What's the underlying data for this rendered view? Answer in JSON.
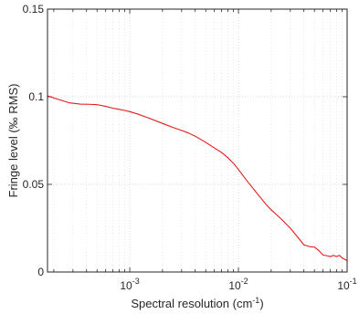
{
  "chart_data": {
    "type": "line",
    "title": "",
    "xlabel": "Spectral resolution (cm",
    "xlabel_sup": "-1",
    "xlabel_end": ")",
    "ylabel": "Fringe level (‰ RMS)",
    "xscale": "log",
    "xlim": [
      0.000175,
      0.1
    ],
    "ylim": [
      0,
      0.15
    ],
    "grid": true,
    "x_ticks": [
      {
        "value": 0.001,
        "base": "10",
        "exp": "-3"
      },
      {
        "value": 0.01,
        "base": "10",
        "exp": "-2"
      },
      {
        "value": 0.1,
        "base": "10",
        "exp": "-1"
      }
    ],
    "y_ticks": [
      {
        "value": 0,
        "label": "0"
      },
      {
        "value": 0.05,
        "label": "0.05"
      },
      {
        "value": 0.1,
        "label": "0.1"
      },
      {
        "value": 0.15,
        "label": "0.15"
      }
    ],
    "series": [
      {
        "color": "#e41a1c",
        "x": [
          0.000175,
          0.00022,
          0.00028,
          0.00035,
          0.00042,
          0.0005,
          0.0006,
          0.0007,
          0.0008,
          0.0009,
          0.001,
          0.0012,
          0.0015,
          0.002,
          0.0025,
          0.003,
          0.0035,
          0.004,
          0.005,
          0.006,
          0.007,
          0.008,
          0.009,
          0.01,
          0.012,
          0.015,
          0.018,
          0.02,
          0.025,
          0.03,
          0.035,
          0.04,
          0.045,
          0.05,
          0.055,
          0.06,
          0.065,
          0.07,
          0.075,
          0.08,
          0.085,
          0.09,
          0.1
        ],
        "y": [
          0.1005,
          0.0985,
          0.0965,
          0.0958,
          0.0957,
          0.0955,
          0.0945,
          0.0935,
          0.0928,
          0.0922,
          0.0915,
          0.09,
          0.0878,
          0.0848,
          0.0825,
          0.0808,
          0.0792,
          0.0775,
          0.074,
          0.0708,
          0.0682,
          0.0652,
          0.062,
          0.0585,
          0.052,
          0.0445,
          0.0385,
          0.0355,
          0.03,
          0.025,
          0.02,
          0.0155,
          0.0145,
          0.0142,
          0.0122,
          0.0097,
          0.0093,
          0.0088,
          0.0095,
          0.0088,
          0.0095,
          0.008,
          0.0065
        ]
      }
    ]
  }
}
